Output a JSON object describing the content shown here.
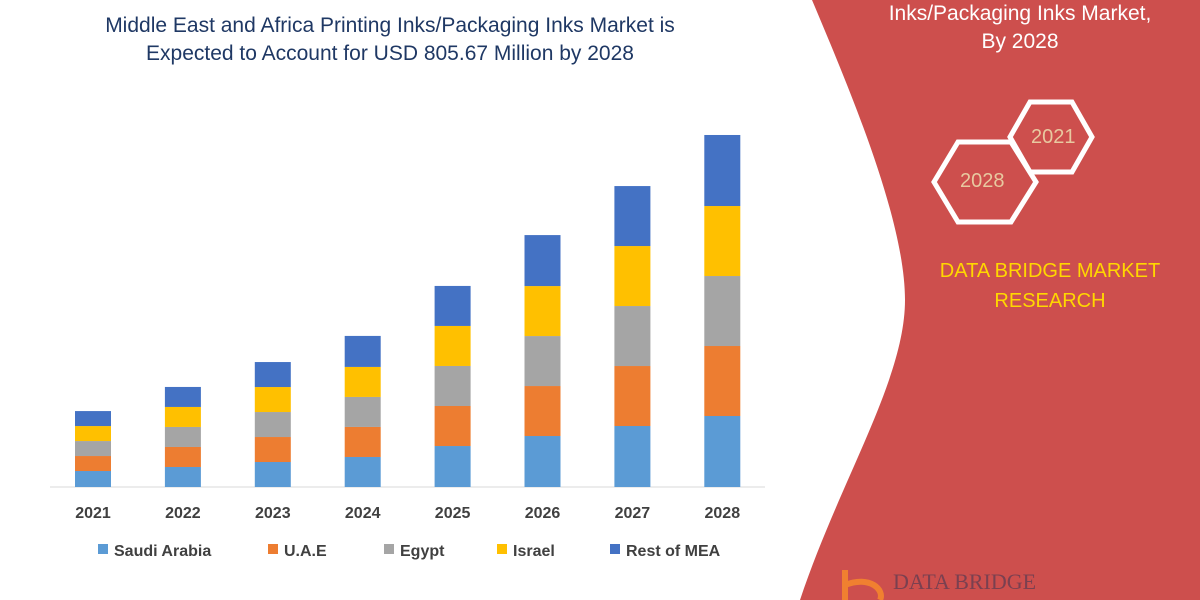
{
  "title_line1": "Middle East and Africa Printing Inks/Packaging Inks Market is",
  "title_line2": "Expected to Account for USD 805.67 Million by 2028",
  "panel": {
    "title_line1": "Inks/Packaging Inks Market,",
    "title_line2": "By 2028",
    "hex_2021": "2021",
    "hex_2028": "2028",
    "brand_line1": "DATA BRIDGE MARKET",
    "brand_line2": "RESEARCH",
    "logo_text": "DATA BRIDGE",
    "color": "#cd4f4d"
  },
  "chart_data": {
    "type": "bar",
    "stacked": true,
    "title": "Middle East and Africa Printing Inks/Packaging Inks Market is Expected to Account for USD 805.67 Million by 2028",
    "categories": [
      "2021",
      "2022",
      "2023",
      "2024",
      "2025",
      "2026",
      "2027",
      "2028"
    ],
    "series": [
      {
        "name": "Saudi Arabia",
        "color": "#5b9bd5",
        "values": [
          36.6,
          45.8,
          57.2,
          68.7,
          93.8,
          116.7,
          139.6,
          162.5
        ]
      },
      {
        "name": "U.A.E",
        "color": "#ed7d31",
        "values": [
          34.3,
          45.8,
          57.2,
          68.7,
          91.6,
          114.4,
          137.3,
          160.2
        ]
      },
      {
        "name": "Egypt",
        "color": "#a5a5a5",
        "values": [
          34.3,
          45.8,
          57.2,
          68.7,
          91.6,
          114.4,
          137.3,
          160.2
        ]
      },
      {
        "name": "Israel",
        "color": "#ffc000",
        "values": [
          34.3,
          45.8,
          57.2,
          68.7,
          91.6,
          114.4,
          137.3,
          160.2
        ]
      },
      {
        "name": "Rest of MEA",
        "color": "#4472c4",
        "values": [
          34.3,
          45.8,
          57.2,
          71.0,
          91.6,
          116.7,
          137.3,
          162.6
        ]
      }
    ],
    "ylim": [
      0,
      805.67
    ],
    "grid": false,
    "legend": "bottom"
  }
}
